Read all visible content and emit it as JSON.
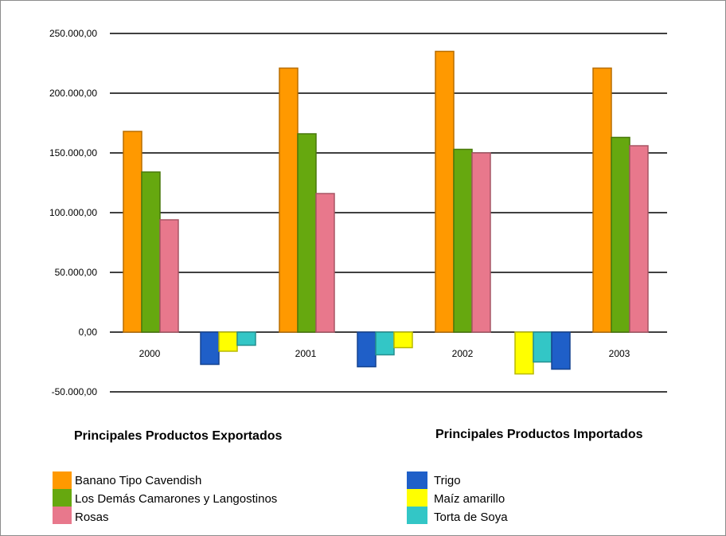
{
  "chart_data": {
    "type": "bar",
    "categories": [
      "2000",
      "2001",
      "2002",
      "2003"
    ],
    "ylim": [
      -50000,
      250000
    ],
    "yticks": [
      "-50.000,00",
      "0,00",
      "50.000,00",
      "100.000,00",
      "150.000,00",
      "200.000,00",
      "250.000,00"
    ],
    "ytick_values": [
      -50000,
      0,
      50000,
      100000,
      150000,
      200000,
      250000
    ],
    "grid": true,
    "groups": [
      {
        "title": "Principales Productos Exportados",
        "series": [
          {
            "name": "Banano Tipo Cavendish",
            "color": "#FF9900",
            "values": [
              168000,
              221000,
              235000,
              221000
            ]
          },
          {
            "name": "Los Demás Camarones y Langostinos",
            "color": "#66A80F",
            "values": [
              134000,
              166000,
              153000,
              163000
            ]
          },
          {
            "name": "Rosas",
            "color": "#E8788C",
            "values": [
              94000,
              116000,
              150000,
              156000
            ]
          }
        ]
      },
      {
        "title": "Principales Productos Importados",
        "series": [
          {
            "name": "Trigo",
            "color": "#1F5FC8",
            "values": [
              -27000,
              -29000,
              -31000
            ]
          },
          {
            "name": "Maíz amarillo",
            "color": "#FFFF00",
            "values": [
              -16000,
              -13000,
              -35000
            ]
          },
          {
            "name": "Torta de Soya",
            "color": "#33C6C6",
            "values": [
              -11000,
              -19000,
              -25000
            ]
          }
        ],
        "note": "import bars drawn between year groups"
      }
    ]
  }
}
